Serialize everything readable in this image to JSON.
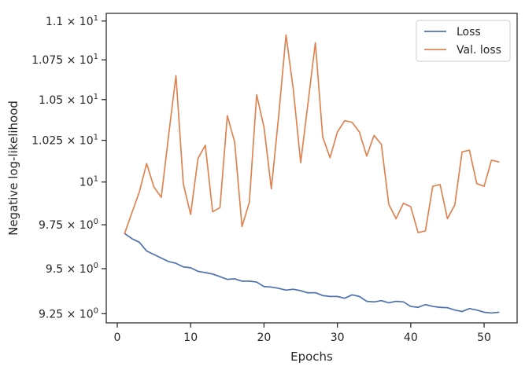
{
  "chart_data": {
    "type": "line",
    "xlabel": "Epochs",
    "ylabel": "Negative log-likelihood",
    "x_ticks": [
      0,
      10,
      20,
      30,
      40,
      50
    ],
    "x_tick_labels": [
      "0",
      "10",
      "20",
      "30",
      "40",
      "50"
    ],
    "y_scale": "log",
    "y_ticks": [
      9.25,
      9.5,
      9.75,
      10,
      10.25,
      10.5,
      10.75,
      11.0
    ],
    "y_tick_labels": [
      {
        "base": "9.25 × 10",
        "exp": "0"
      },
      {
        "base": "9.5 × 10",
        "exp": "0"
      },
      {
        "base": "9.75 × 10",
        "exp": "0"
      },
      {
        "base": "10",
        "exp": "1"
      },
      {
        "base": "1.025 × 10",
        "exp": "1"
      },
      {
        "base": "1.05 × 10",
        "exp": "1"
      },
      {
        "base": "1.075 × 10",
        "exp": "1"
      },
      {
        "base": "1.1 × 10",
        "exp": "1"
      }
    ],
    "xlim": [
      -1.5,
      54.5
    ],
    "ylim": [
      9.2,
      11.05
    ],
    "grid": false,
    "legend_position": "top-right",
    "series": [
      {
        "name": "Loss",
        "color": "#4c72b0",
        "x": [
          1,
          2,
          3,
          4,
          5,
          6,
          7,
          8,
          9,
          10,
          11,
          12,
          13,
          14,
          15,
          16,
          17,
          18,
          19,
          20,
          21,
          22,
          23,
          24,
          25,
          26,
          27,
          28,
          29,
          30,
          31,
          32,
          33,
          34,
          35,
          36,
          37,
          38,
          39,
          40,
          41,
          42,
          43,
          44,
          45,
          46,
          47,
          48,
          49,
          50,
          51,
          52
        ],
        "values": [
          9.7,
          9.67,
          9.65,
          9.6,
          9.58,
          9.56,
          9.54,
          9.53,
          9.51,
          9.505,
          9.485,
          9.478,
          9.47,
          9.455,
          9.44,
          9.443,
          9.43,
          9.43,
          9.425,
          9.4,
          9.397,
          9.39,
          9.38,
          9.385,
          9.377,
          9.365,
          9.366,
          9.35,
          9.345,
          9.345,
          9.335,
          9.354,
          9.345,
          9.318,
          9.315,
          9.322,
          9.31,
          9.318,
          9.315,
          9.29,
          9.285,
          9.3,
          9.29,
          9.285,
          9.283,
          9.27,
          9.262,
          9.278,
          9.27,
          9.258,
          9.254,
          9.258
        ]
      },
      {
        "name": "Val. loss",
        "color": "#dd8452",
        "x": [
          1,
          2,
          3,
          4,
          5,
          6,
          7,
          8,
          9,
          10,
          11,
          12,
          13,
          14,
          15,
          16,
          17,
          18,
          19,
          20,
          21,
          22,
          23,
          24,
          25,
          26,
          27,
          28,
          29,
          30,
          31,
          32,
          33,
          34,
          35,
          36,
          37,
          38,
          39,
          40,
          41,
          42,
          43,
          44,
          45,
          46,
          47,
          48,
          49,
          50,
          51,
          52
        ],
        "values": [
          9.7,
          9.82,
          9.94,
          10.11,
          9.97,
          9.91,
          10.28,
          10.65,
          9.99,
          9.81,
          10.14,
          10.22,
          9.825,
          9.85,
          10.4,
          10.24,
          9.74,
          9.88,
          10.53,
          10.33,
          9.96,
          10.4,
          10.91,
          10.56,
          10.115,
          10.48,
          10.86,
          10.27,
          10.145,
          10.3,
          10.37,
          10.36,
          10.3,
          10.155,
          10.28,
          10.225,
          9.87,
          9.785,
          9.875,
          9.855,
          9.705,
          9.715,
          9.975,
          9.985,
          9.785,
          9.865,
          10.18,
          10.19,
          9.99,
          9.975,
          10.13,
          10.12
        ]
      }
    ]
  }
}
